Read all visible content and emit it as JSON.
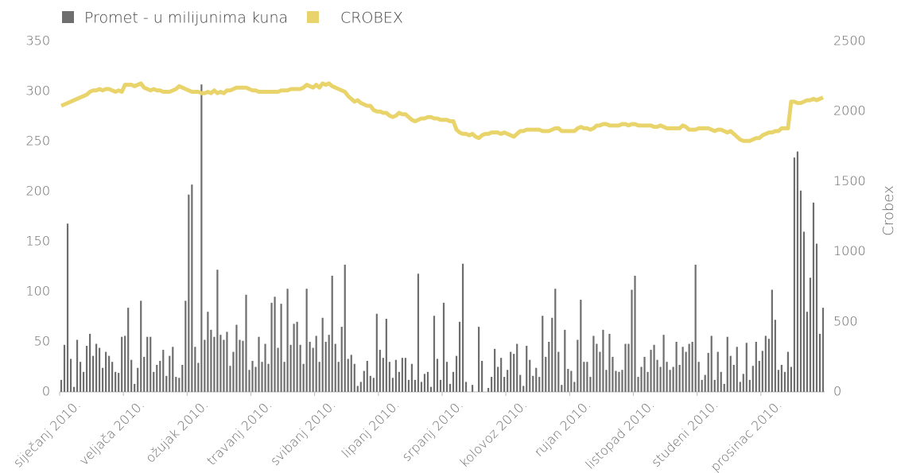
{
  "chart_data": {
    "type": "bar-line",
    "y_label": "Crobex",
    "ylim": [
      0,
      350
    ],
    "yticks": [
      0,
      50,
      100,
      150,
      200,
      250,
      300,
      350
    ],
    "y2lim": [
      0,
      2500
    ],
    "y2ticks": [
      0,
      500,
      1000,
      1500,
      2000,
      2500
    ],
    "categories": [
      "siječanj 2010.",
      null,
      null,
      null,
      null,
      null,
      null,
      null,
      null,
      null,
      null,
      null,
      null,
      null,
      null,
      null,
      null,
      null,
      null,
      null,
      "veljača 2010.",
      null,
      null,
      null,
      null,
      null,
      null,
      null,
      null,
      null,
      null,
      null,
      null,
      null,
      null,
      null,
      null,
      null,
      null,
      null,
      "ožujak 2010.",
      null,
      null,
      null,
      null,
      null,
      null,
      null,
      null,
      null,
      null,
      null,
      null,
      null,
      null,
      null,
      null,
      null,
      null,
      null,
      "travanj 2010.",
      null,
      null,
      null,
      null,
      null,
      null,
      null,
      null,
      null,
      null,
      null,
      null,
      null,
      null,
      null,
      null,
      null,
      null,
      null,
      "svibanj 2010.",
      null,
      null,
      null,
      null,
      null,
      null,
      null,
      null,
      null,
      null,
      null,
      null,
      null,
      null,
      null,
      null,
      null,
      null,
      null,
      "lipanj 2010.",
      null,
      null,
      null,
      null,
      null,
      null,
      null,
      null,
      null,
      null,
      null,
      null,
      null,
      null,
      null,
      null,
      null,
      null,
      null,
      "srpanj 2010.",
      null,
      null,
      null,
      null,
      null,
      null,
      null,
      null,
      null,
      null,
      null,
      null,
      null,
      null,
      null,
      null,
      null,
      null,
      null,
      "kolovoz 2010.",
      null,
      null,
      null,
      null,
      null,
      null,
      null,
      null,
      null,
      null,
      null,
      null,
      null,
      null,
      null,
      null,
      null,
      null,
      null,
      "rujan 2010.",
      null,
      null,
      null,
      null,
      null,
      null,
      null,
      null,
      null,
      null,
      null,
      null,
      null,
      null,
      null,
      null,
      null,
      null,
      null,
      "listopad 2010.",
      null,
      null,
      null,
      null,
      null,
      null,
      null,
      null,
      null,
      null,
      null,
      null,
      null,
      null,
      null,
      null,
      null,
      null,
      null,
      "studeni 2010.",
      null,
      null,
      null,
      null,
      null,
      null,
      null,
      null,
      null,
      null,
      null,
      null,
      null,
      null,
      null,
      null,
      null,
      null,
      null,
      "prosinac 2010.",
      null,
      null,
      null,
      null,
      null,
      null,
      null,
      null,
      null,
      null,
      null,
      null,
      null,
      null,
      null,
      null,
      null,
      null,
      null
    ],
    "series": [
      {
        "name": "Promet - u milijunima kuna",
        "color": "#6e6e6e",
        "type": "bar",
        "values": [
          12,
          47,
          168,
          33,
          5,
          52,
          30,
          20,
          46,
          58,
          36,
          48,
          44,
          24,
          40,
          36,
          30,
          20,
          19,
          55,
          56,
          84,
          32,
          8,
          24,
          91,
          35,
          55,
          55,
          20,
          27,
          31,
          42,
          16,
          36,
          45,
          15,
          14,
          27,
          91,
          197,
          207,
          45,
          29,
          307,
          52,
          80,
          62,
          55,
          122,
          57,
          52,
          60,
          26,
          40,
          67,
          52,
          51,
          97,
          22,
          31,
          25,
          55,
          30,
          48,
          28,
          89,
          95,
          44,
          88,
          30,
          103,
          47,
          68,
          70,
          47,
          28,
          103,
          50,
          44,
          56,
          30,
          74,
          50,
          57,
          116,
          48,
          30,
          65,
          127,
          33,
          37,
          28,
          6,
          10,
          21,
          31,
          16,
          14,
          78,
          42,
          34,
          73,
          30,
          14,
          32,
          20,
          34,
          34,
          12,
          28,
          12,
          118,
          10,
          18,
          20,
          5,
          76,
          33,
          12,
          89,
          30,
          8,
          20,
          36,
          70,
          128,
          10,
          0,
          7,
          0,
          65,
          31,
          0,
          4,
          15,
          43,
          25,
          34,
          15,
          22,
          40,
          38,
          48,
          17,
          6,
          46,
          32,
          16,
          24,
          15,
          76,
          35,
          50,
          74,
          103,
          40,
          7,
          62,
          23,
          21,
          10,
          52,
          92,
          30,
          30,
          15,
          56,
          48,
          40,
          62,
          22,
          58,
          35,
          21,
          20,
          22,
          48,
          48,
          102,
          116,
          15,
          25,
          35,
          20,
          42,
          47,
          32,
          25,
          57,
          30,
          22,
          25,
          50,
          27,
          45,
          40,
          48,
          50,
          127,
          30,
          12,
          17,
          39,
          56,
          12,
          40,
          20,
          8,
          55,
          36,
          27,
          45,
          10,
          18,
          49,
          12,
          26,
          50,
          31,
          41,
          56,
          53,
          102,
          72,
          22,
          27,
          20,
          40,
          25,
          234,
          240,
          201,
          160,
          80,
          114,
          189,
          148,
          58,
          84
        ]
      },
      {
        "name": "CROBEX",
        "color": "#e9d46c",
        "type": "line",
        "axis": "y2",
        "values": [
          2040,
          2050,
          2060,
          2070,
          2080,
          2090,
          2100,
          2110,
          2120,
          2140,
          2150,
          2150,
          2160,
          2150,
          2160,
          2160,
          2150,
          2140,
          2150,
          2140,
          2190,
          2190,
          2190,
          2180,
          2190,
          2200,
          2170,
          2160,
          2150,
          2160,
          2150,
          2150,
          2140,
          2140,
          2140,
          2150,
          2160,
          2180,
          2170,
          2160,
          2150,
          2140,
          2140,
          2140,
          2130,
          2130,
          2140,
          2130,
          2150,
          2130,
          2140,
          2130,
          2150,
          2150,
          2160,
          2170,
          2170,
          2170,
          2170,
          2160,
          2150,
          2150,
          2140,
          2140,
          2140,
          2140,
          2140,
          2140,
          2140,
          2150,
          2150,
          2150,
          2160,
          2160,
          2160,
          2160,
          2170,
          2190,
          2180,
          2170,
          2190,
          2170,
          2200,
          2190,
          2200,
          2180,
          2170,
          2160,
          2150,
          2140,
          2110,
          2090,
          2070,
          2080,
          2060,
          2050,
          2040,
          2040,
          2010,
          2000,
          2000,
          1990,
          1990,
          1970,
          1960,
          1970,
          1990,
          1980,
          1980,
          1960,
          1940,
          1930,
          1940,
          1950,
          1950,
          1960,
          1960,
          1950,
          1950,
          1940,
          1940,
          1940,
          1930,
          1930,
          1870,
          1850,
          1840,
          1840,
          1830,
          1840,
          1820,
          1810,
          1830,
          1840,
          1840,
          1850,
          1850,
          1850,
          1840,
          1850,
          1840,
          1830,
          1820,
          1840,
          1860,
          1860,
          1870,
          1870,
          1870,
          1870,
          1870,
          1860,
          1860,
          1860,
          1870,
          1880,
          1880,
          1860,
          1860,
          1860,
          1860,
          1860,
          1880,
          1890,
          1880,
          1880,
          1870,
          1880,
          1900,
          1900,
          1910,
          1910,
          1900,
          1900,
          1900,
          1900,
          1910,
          1910,
          1900,
          1910,
          1910,
          1900,
          1900,
          1900,
          1900,
          1900,
          1890,
          1890,
          1900,
          1890,
          1880,
          1880,
          1880,
          1880,
          1880,
          1900,
          1890,
          1870,
          1870,
          1870,
          1880,
          1880,
          1880,
          1880,
          1870,
          1860,
          1870,
          1870,
          1860,
          1850,
          1860,
          1840,
          1820,
          1800,
          1790,
          1790,
          1790,
          1800,
          1810,
          1810,
          1830,
          1840,
          1850,
          1850,
          1860,
          1860,
          1880,
          1880,
          1880,
          2070,
          2070,
          2060,
          2060,
          2070,
          2080,
          2080,
          2090,
          2080,
          2090,
          2100
        ]
      }
    ]
  }
}
